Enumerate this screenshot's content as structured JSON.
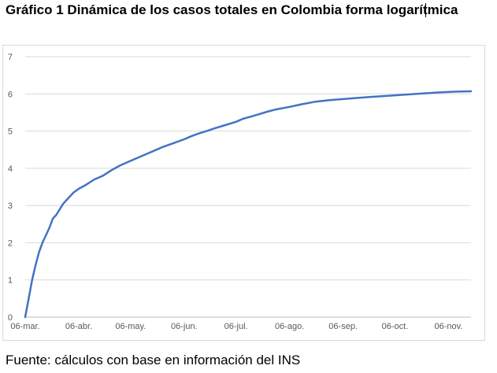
{
  "title": "Gráfico 1 Dinámica de los casos totales en Colombia forma logarítmica",
  "source": "Fuente: cálculos con base en información del INS",
  "chart_data": {
    "type": "line",
    "title": "",
    "xlabel": "",
    "ylabel": "",
    "ylim": [
      0,
      7
    ],
    "yticks": [
      0,
      1,
      2,
      3,
      4,
      5,
      6,
      7
    ],
    "x_ticks": [
      "06-mar.",
      "06-abr.",
      "06-may.",
      "06-jun.",
      "06-jul.",
      "06-ago.",
      "06-sep.",
      "06-oct.",
      "06-nov."
    ],
    "x_tick_days": [
      0,
      31,
      61,
      92,
      122,
      153,
      184,
      214,
      245
    ],
    "xlim_days": [
      0,
      258
    ],
    "grid": true,
    "legend": "none",
    "line_color": "#4472c4",
    "series": [
      {
        "x_days": [
          0,
          2,
          4,
          6,
          8,
          10,
          12,
          14,
          16,
          18,
          20,
          22,
          24,
          26,
          28,
          31,
          35,
          40,
          45,
          50,
          55,
          61,
          65,
          70,
          75,
          80,
          85,
          92,
          96,
          100,
          105,
          110,
          115,
          122,
          126,
          130,
          135,
          140,
          145,
          153,
          160,
          168,
          176,
          184,
          192,
          200,
          210,
          220,
          230,
          240,
          250,
          258
        ],
        "values": [
          0,
          0.5,
          1.0,
          1.4,
          1.75,
          2.0,
          2.2,
          2.4,
          2.65,
          2.75,
          2.9,
          3.05,
          3.15,
          3.25,
          3.35,
          3.45,
          3.55,
          3.7,
          3.8,
          3.95,
          4.08,
          4.2,
          4.28,
          4.38,
          4.48,
          4.58,
          4.66,
          4.78,
          4.86,
          4.93,
          5.0,
          5.08,
          5.15,
          5.25,
          5.33,
          5.38,
          5.45,
          5.52,
          5.58,
          5.65,
          5.72,
          5.79,
          5.83,
          5.86,
          5.89,
          5.92,
          5.95,
          5.98,
          6.01,
          6.04,
          6.06,
          6.07
        ]
      }
    ]
  }
}
